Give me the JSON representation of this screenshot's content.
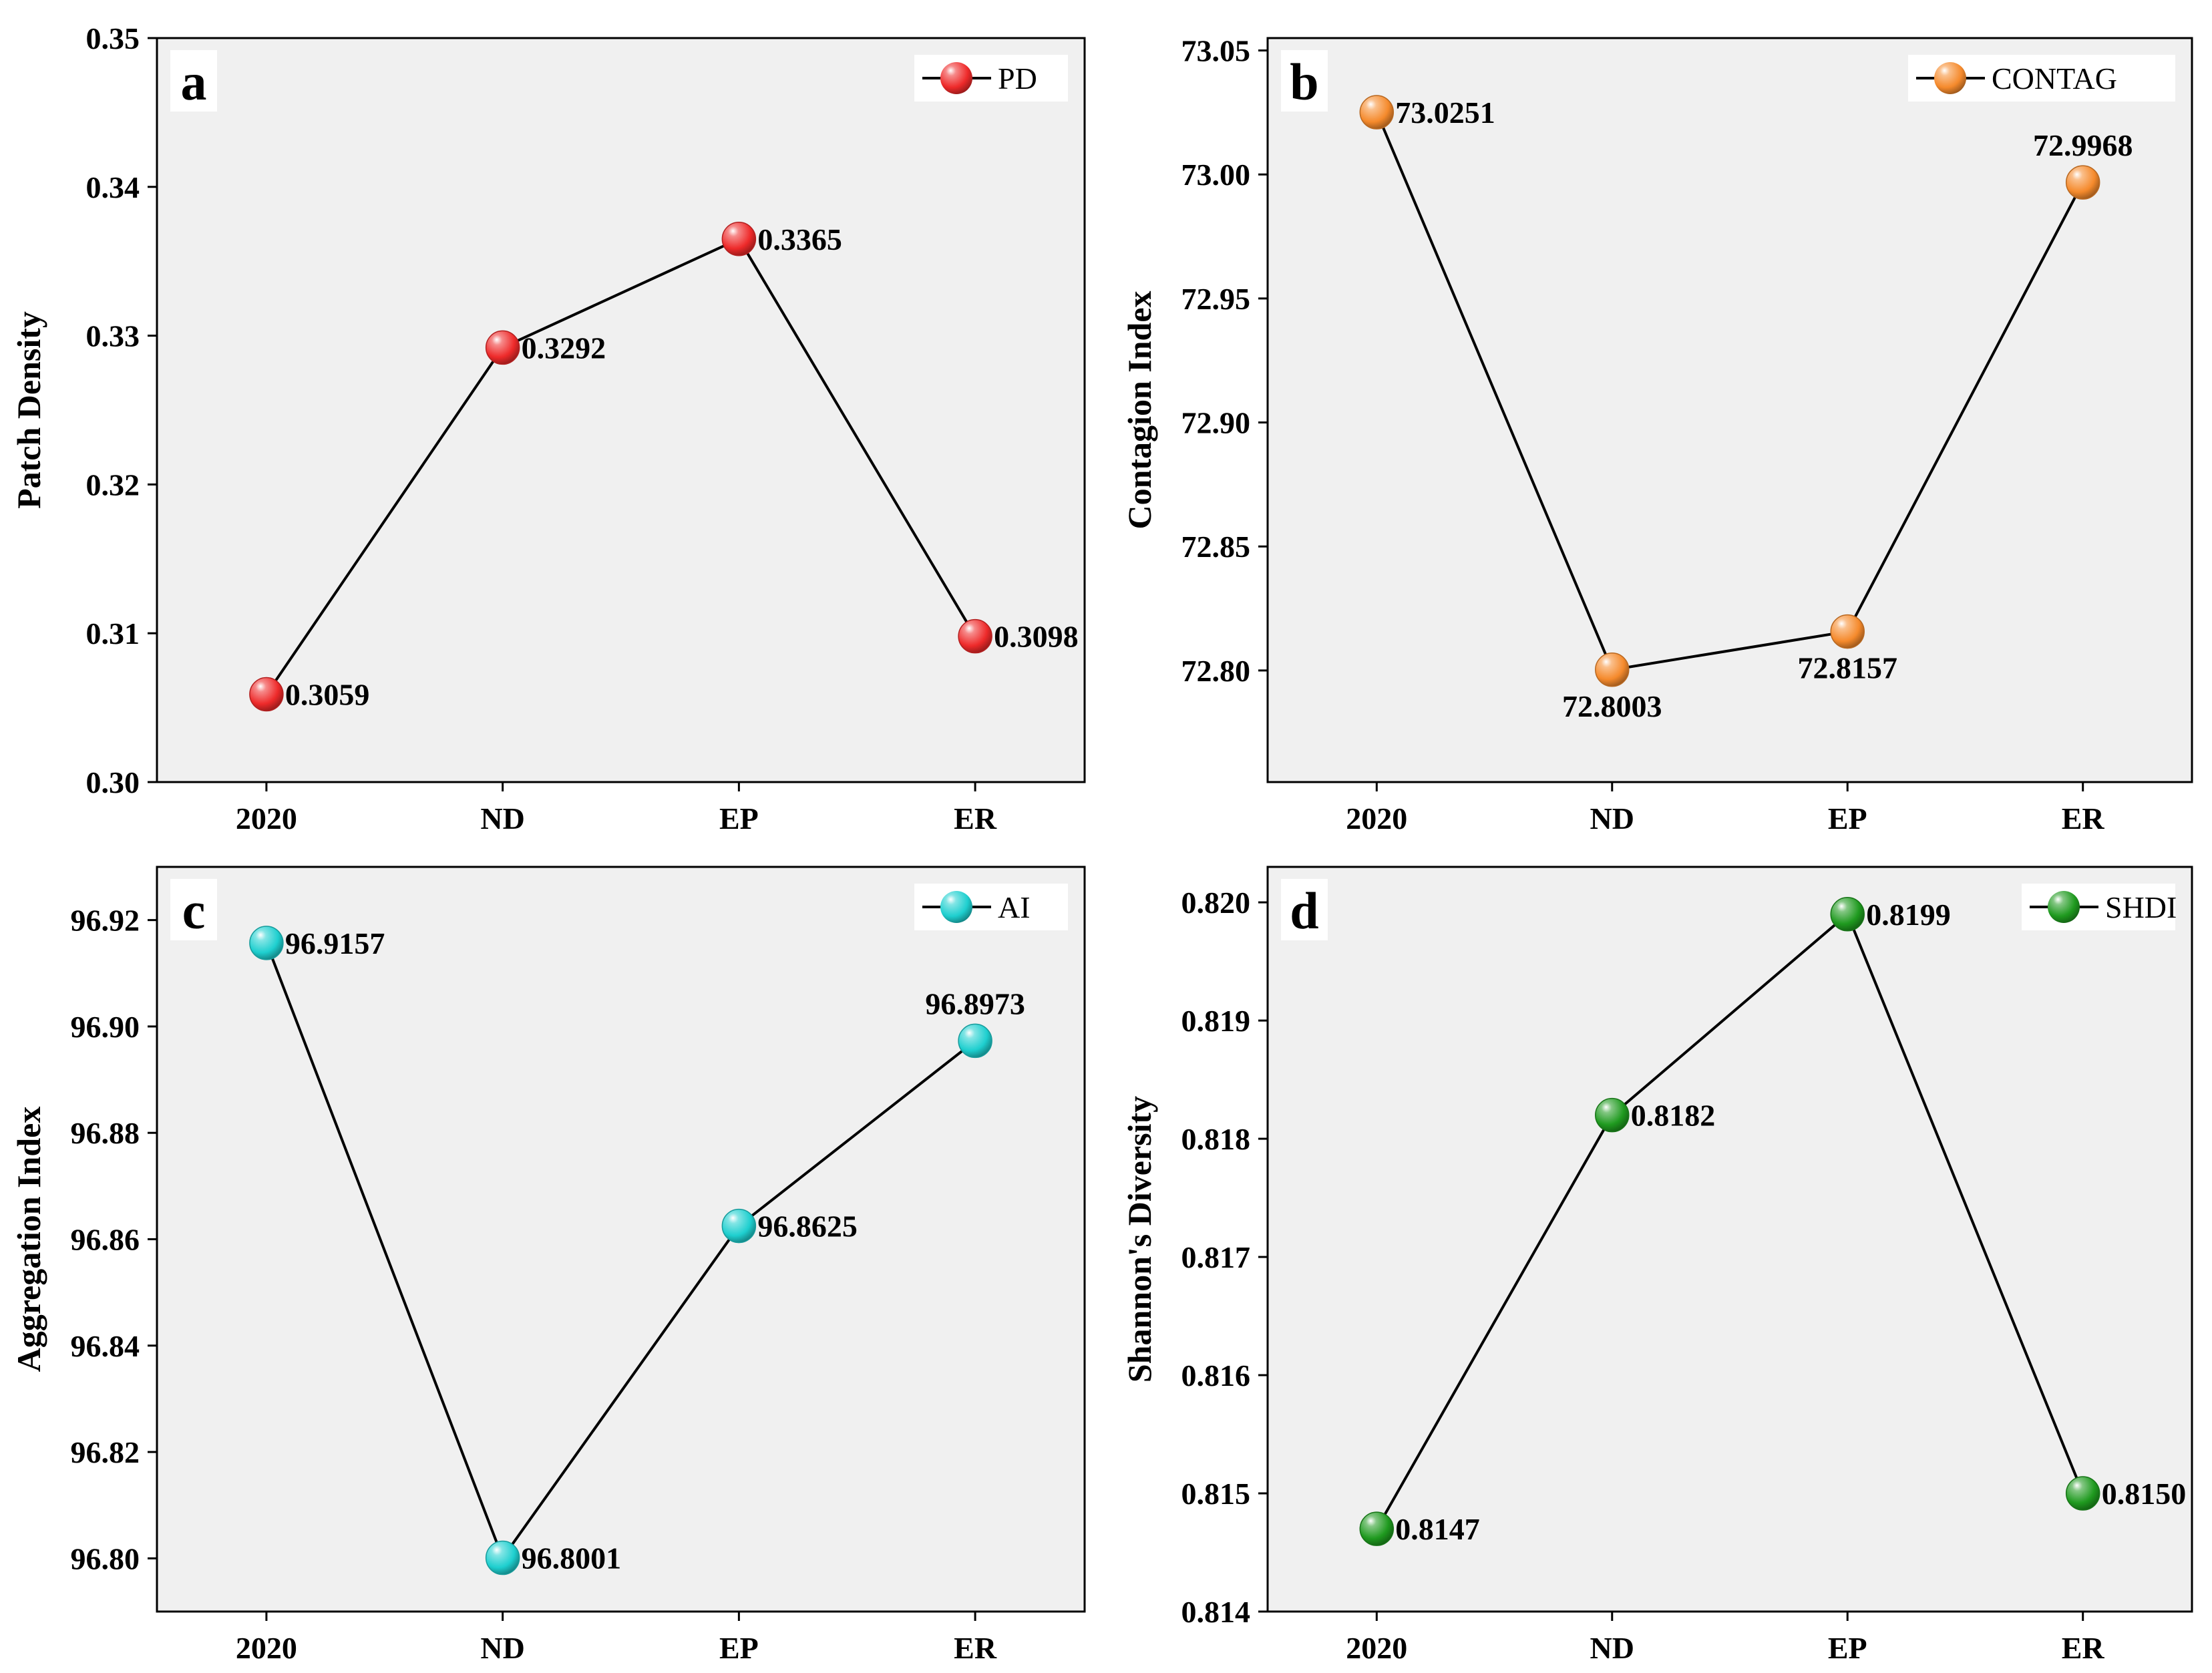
{
  "chart_data": [
    {
      "type": "line",
      "panel": "a",
      "categories": [
        "2020",
        "ND",
        "EP",
        "ER"
      ],
      "series": [
        {
          "name": "PD",
          "values": [
            0.3059,
            0.3292,
            0.3365,
            0.3098
          ]
        }
      ],
      "value_labels": [
        "0.3059",
        "0.3292",
        "0.3365",
        "0.3098"
      ],
      "ylabel": "Patch Density",
      "ylim": [
        0.3,
        0.35
      ],
      "yticks": [
        "0.30",
        "0.31",
        "0.32",
        "0.33",
        "0.34",
        "0.35"
      ],
      "color": "#ee2a2a",
      "grid": false,
      "legend": "top-right"
    },
    {
      "type": "line",
      "panel": "b",
      "categories": [
        "2020",
        "ND",
        "EP",
        "ER"
      ],
      "series": [
        {
          "name": "CONTAG",
          "values": [
            73.0251,
            72.8003,
            72.8157,
            72.9968
          ]
        }
      ],
      "value_labels": [
        "73.0251",
        "72.8003",
        "72.8157",
        "72.9968"
      ],
      "ylabel": "Contagion Index",
      "ylim": [
        72.755,
        73.055
      ],
      "yticks": [
        "72.80",
        "72.85",
        "72.90",
        "72.95",
        "73.00",
        "73.05"
      ],
      "color": "#f58a2c",
      "grid": false,
      "legend": "top-right"
    },
    {
      "type": "line",
      "panel": "c",
      "categories": [
        "2020",
        "ND",
        "EP",
        "ER"
      ],
      "series": [
        {
          "name": "AI",
          "values": [
            96.9157,
            96.8001,
            96.8625,
            96.8973
          ]
        }
      ],
      "value_labels": [
        "96.9157",
        "96.8001",
        "96.8625",
        "96.8973"
      ],
      "ylabel": "Aggregation Index",
      "ylim": [
        96.79,
        96.93
      ],
      "yticks": [
        "96.80",
        "96.82",
        "96.84",
        "96.86",
        "96.88",
        "96.90",
        "96.92"
      ],
      "color": "#1ecfcf",
      "grid": false,
      "legend": "top-right"
    },
    {
      "type": "line",
      "panel": "d",
      "categories": [
        "2020",
        "ND",
        "EP",
        "ER"
      ],
      "series": [
        {
          "name": "SHDI",
          "values": [
            0.8147,
            0.8182,
            0.8199,
            0.815
          ]
        }
      ],
      "value_labels": [
        "0.8147",
        "0.8182",
        "0.8199",
        "0.8150"
      ],
      "ylabel": "Shannon's Diversity",
      "ylim": [
        0.814,
        0.8203
      ],
      "yticks": [
        "0.814",
        "0.815",
        "0.816",
        "0.817",
        "0.818",
        "0.819",
        "0.820"
      ],
      "color": "#1f9a1f",
      "grid": false,
      "legend": "top-right"
    }
  ]
}
